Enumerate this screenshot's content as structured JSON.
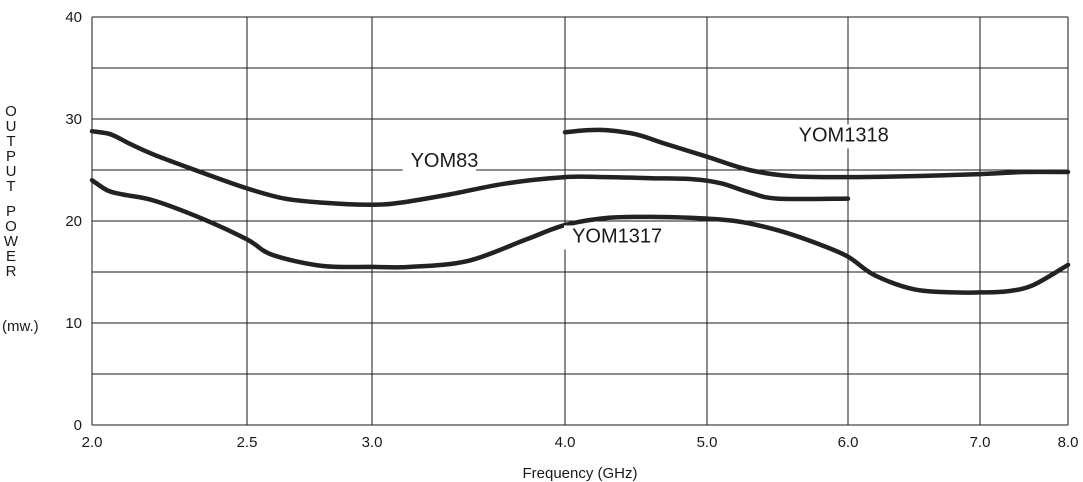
{
  "chart_data": {
    "type": "line",
    "xlabel": "Frequency (GHz)",
    "ylabel_letters": [
      "O",
      "U",
      "T",
      "P",
      "U",
      "T",
      "",
      "P",
      "O",
      "W",
      "E",
      "R"
    ],
    "ylabel_unit": "(mw.)",
    "x_ticks": [
      "2.0",
      "2.5",
      "3.0",
      "4.0",
      "5.0",
      "6.0",
      "7.0",
      "8.0"
    ],
    "y_ticks": [
      "0",
      "10",
      "20",
      "30",
      "40"
    ],
    "ylim": [
      0,
      40
    ],
    "grid": true,
    "line_color": "#222222",
    "series": [
      {
        "name": "YOM83",
        "x": [
          2.0,
          2.06,
          2.12,
          2.2,
          2.35,
          2.5,
          2.65,
          2.8,
          3.0,
          3.15,
          3.4,
          3.7,
          4.0,
          4.3,
          4.6,
          4.9,
          5.1,
          5.3,
          5.5,
          6.0
        ],
        "y": [
          28.8,
          28.5,
          27.6,
          26.5,
          24.8,
          23.2,
          22.2,
          21.8,
          21.6,
          21.8,
          22.6,
          23.7,
          24.3,
          24.3,
          24.2,
          24.1,
          23.7,
          22.8,
          22.2,
          22.2
        ]
      },
      {
        "name": "YOM1317",
        "x": [
          2.0,
          2.05,
          2.1,
          2.2,
          2.35,
          2.5,
          2.6,
          2.8,
          3.0,
          3.2,
          3.5,
          3.8,
          4.0,
          4.3,
          4.6,
          4.9,
          5.2,
          5.5,
          5.8,
          6.0,
          6.2,
          6.5,
          6.8,
          7.0,
          7.3,
          7.6,
          8.0
        ],
        "y": [
          24.0,
          23.0,
          22.6,
          22.0,
          20.3,
          18.2,
          16.7,
          15.6,
          15.5,
          15.5,
          16.1,
          18.2,
          19.6,
          20.3,
          20.4,
          20.3,
          20.0,
          19.1,
          17.7,
          16.5,
          14.7,
          13.3,
          13.0,
          13.0,
          13.1,
          13.7,
          15.7
        ]
      },
      {
        "name": "YOM1318",
        "x": [
          4.0,
          4.15,
          4.3,
          4.5,
          4.7,
          5.0,
          5.3,
          5.6,
          6.0,
          6.5,
          7.0,
          7.5,
          8.0
        ],
        "y": [
          28.7,
          28.9,
          28.9,
          28.5,
          27.6,
          26.3,
          25.0,
          24.4,
          24.3,
          24.4,
          24.6,
          24.8,
          24.8
        ]
      }
    ],
    "series_labels": [
      {
        "name": "YOM83",
        "x": 3.2,
        "y": 25.3
      },
      {
        "name": "YOM1317",
        "x": 4.05,
        "y": 17.9
      },
      {
        "name": "YOM1318",
        "x": 5.65,
        "y": 27.8
      }
    ]
  }
}
